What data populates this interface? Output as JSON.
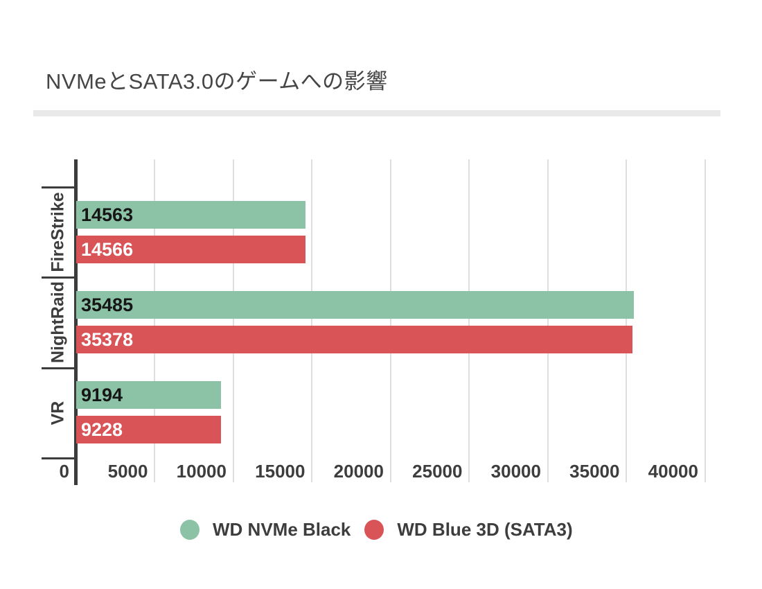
{
  "title": "NVMeとSATA3.0のゲームへの影響",
  "colors": {
    "green_series": "#8CC3A6",
    "red_series": "#D95457",
    "axis": "#3C3C3C",
    "gridline": "#DEDEDE",
    "text_dark": "#3D3D3D",
    "title_text": "#454545",
    "divider": "#E9E9E9",
    "value_on_green": "#161616",
    "value_on_red": "#FFFFFF",
    "background": "#FFFFFF"
  },
  "chart_data": {
    "type": "bar",
    "orientation": "horizontal",
    "title": "NVMeとSATA3.0のゲームへの影響",
    "categories": [
      "FireStrike",
      "NightRaid",
      "VR"
    ],
    "series": [
      {
        "name": "WD NVMe Black",
        "color": "#8CC3A6",
        "label_color": "#161616",
        "values": [
          14563,
          35485,
          9194
        ]
      },
      {
        "name": "WD Blue 3D (SATA3)",
        "color": "#D95457",
        "label_color": "#FFFFFF",
        "values": [
          14566,
          35378,
          9228
        ]
      }
    ],
    "x_ticks": [
      0,
      5000,
      10000,
      15000,
      20000,
      25000,
      30000,
      35000,
      40000
    ],
    "x_tick_labels": [
      "0",
      "5000",
      "10000",
      "15000",
      "20000",
      "25000",
      "30000",
      "35000",
      "40000"
    ],
    "xlim": [
      0,
      40750
    ],
    "grid": true,
    "legend_position": "bottom",
    "value_labels": "inside-left"
  }
}
